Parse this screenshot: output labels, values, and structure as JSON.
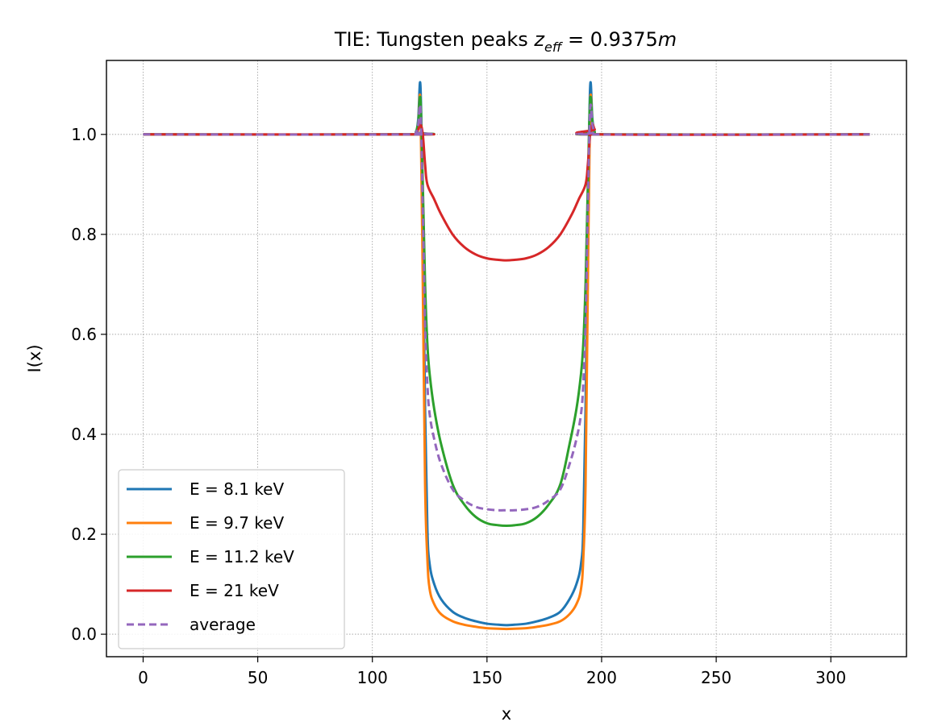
{
  "chart_data": {
    "type": "line",
    "title_main": "TIE: Tungsten peaks ",
    "title_math": {
      "var": "z",
      "sub": "eff",
      "value": "0.9375",
      "unit": "m"
    },
    "xlabel": "x",
    "ylabel": "I(x)",
    "xlim": [
      -16,
      333
    ],
    "ylim": [
      -0.045,
      1.148
    ],
    "xticks": [
      0,
      50,
      100,
      150,
      200,
      250,
      300
    ],
    "xtick_labels": [
      "0",
      "50",
      "100",
      "150",
      "200",
      "250",
      "300"
    ],
    "yticks": [
      0.0,
      0.2,
      0.4,
      0.6,
      0.8,
      1.0
    ],
    "ytick_labels": [
      "0.0",
      "0.2",
      "0.4",
      "0.6",
      "0.8",
      "1.0"
    ],
    "grid": true,
    "legend_position": "lower-left",
    "x_domain": [
      0,
      317
    ],
    "series": [
      {
        "name": "E = 8.1 keV",
        "color": "#1f77b4",
        "dashed": false,
        "x": [
          0,
          117,
          119,
          120,
          121,
          122,
          123,
          124,
          125,
          127,
          130,
          135,
          140,
          145,
          150,
          155,
          158.5,
          162,
          167,
          172,
          177,
          182,
          186,
          189,
          191,
          192,
          193,
          194,
          195,
          196,
          197,
          199,
          317
        ],
        "y": [
          1.0,
          1.0,
          1.005,
          1.03,
          1.095,
          0.82,
          0.45,
          0.21,
          0.14,
          0.1,
          0.07,
          0.045,
          0.033,
          0.026,
          0.021,
          0.019,
          0.018,
          0.019,
          0.021,
          0.026,
          0.033,
          0.045,
          0.07,
          0.1,
          0.14,
          0.21,
          0.45,
          0.82,
          1.095,
          1.03,
          1.005,
          1.0,
          1.0
        ]
      },
      {
        "name": "E = 9.7 keV",
        "color": "#ff7f0e",
        "dashed": false,
        "x": [
          0,
          117,
          119,
          120,
          121,
          122,
          123,
          124,
          125,
          127,
          130,
          135,
          140,
          145,
          150,
          155,
          158.5,
          162,
          167,
          172,
          177,
          182,
          186,
          189,
          191,
          192,
          193,
          194,
          195,
          196,
          197,
          199,
          317
        ],
        "y": [
          1.0,
          1.0,
          1.003,
          1.02,
          1.06,
          0.7,
          0.3,
          0.15,
          0.09,
          0.06,
          0.04,
          0.026,
          0.019,
          0.015,
          0.012,
          0.011,
          0.0105,
          0.011,
          0.012,
          0.015,
          0.019,
          0.026,
          0.04,
          0.06,
          0.09,
          0.15,
          0.3,
          0.7,
          1.06,
          1.02,
          1.003,
          1.0,
          1.0
        ]
      },
      {
        "name": "E = 11.2 keV",
        "color": "#2ca02c",
        "dashed": false,
        "x": [
          0,
          117,
          119,
          120,
          121,
          122,
          123,
          124,
          125,
          127,
          130,
          135,
          140,
          145,
          150,
          155,
          158.5,
          162,
          167,
          172,
          177,
          182,
          186,
          189,
          191,
          192,
          193,
          194,
          195,
          196,
          197,
          199,
          317
        ],
        "y": [
          1.0,
          1.0,
          1.005,
          1.025,
          1.07,
          0.9,
          0.7,
          0.58,
          0.52,
          0.45,
          0.38,
          0.3,
          0.26,
          0.235,
          0.222,
          0.218,
          0.217,
          0.218,
          0.222,
          0.235,
          0.26,
          0.3,
          0.38,
          0.45,
          0.52,
          0.58,
          0.7,
          0.9,
          1.07,
          1.025,
          1.005,
          1.0,
          1.0
        ]
      },
      {
        "name": "E = 21 keV",
        "color": "#d62728",
        "dashed": false,
        "x": [
          0,
          117,
          119,
          120,
          121,
          122,
          123,
          124,
          127,
          130,
          135,
          140,
          145,
          150,
          155,
          158.5,
          162,
          167,
          172,
          177,
          182,
          187,
          190,
          193,
          194,
          195,
          196,
          197,
          199,
          317
        ],
        "y": [
          1.0,
          1.0,
          1.002,
          1.01,
          1.02,
          1.0,
          0.94,
          0.9,
          0.87,
          0.84,
          0.8,
          0.775,
          0.76,
          0.752,
          0.749,
          0.748,
          0.749,
          0.752,
          0.76,
          0.775,
          0.8,
          0.84,
          0.87,
          0.9,
          0.94,
          1.0,
          1.02,
          1.01,
          1.0,
          1.0
        ]
      },
      {
        "name": "average",
        "color": "#9467bd",
        "dashed": true,
        "x": [
          0,
          117,
          119,
          120,
          121,
          122,
          123,
          124,
          125,
          127,
          130,
          135,
          140,
          145,
          150,
          155,
          158.5,
          162,
          167,
          172,
          177,
          182,
          186,
          189,
          191,
          192,
          193,
          194,
          195,
          196,
          197,
          199,
          317
        ],
        "y": [
          1.0,
          1.0,
          1.004,
          1.02,
          1.05,
          0.85,
          0.62,
          0.5,
          0.44,
          0.39,
          0.34,
          0.29,
          0.268,
          0.255,
          0.25,
          0.248,
          0.248,
          0.248,
          0.25,
          0.255,
          0.268,
          0.29,
          0.34,
          0.39,
          0.44,
          0.5,
          0.62,
          0.85,
          1.05,
          1.02,
          1.004,
          1.0,
          1.0
        ]
      }
    ]
  }
}
